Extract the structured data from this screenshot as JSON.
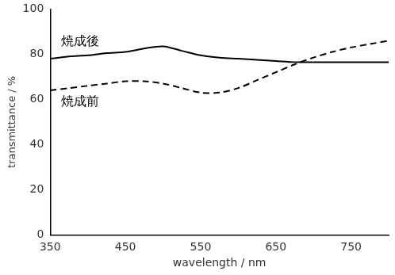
{
  "chart_data": {
    "type": "line",
    "x_label": "wavelength / nm",
    "y_label": "transmittance / %",
    "x": [
      350,
      375,
      400,
      425,
      450,
      475,
      500,
      525,
      550,
      575,
      600,
      625,
      650,
      675,
      700,
      725,
      750,
      775,
      800
    ],
    "series": [
      {
        "name": "焼成後",
        "color": "#000000",
        "line_style": "solid",
        "values": [
          78,
          79,
          79.5,
          80.5,
          81,
          82.5,
          83.5,
          81.5,
          79.5,
          78.5,
          78,
          77.5,
          77,
          76.5,
          76.5,
          76.5,
          76.5,
          76.5,
          76.5
        ]
      },
      {
        "name": "焼成前",
        "color": "#000000",
        "line_style": "dashed",
        "values": [
          64,
          65,
          66,
          67,
          68,
          68,
          67,
          65,
          63,
          63,
          65,
          68.5,
          72,
          75.5,
          78.5,
          81,
          83,
          84.5,
          86
        ]
      }
    ],
    "xlim": [
      350,
      800
    ],
    "xticks": [
      350,
      450,
      550,
      650,
      750
    ],
    "ylim": [
      0,
      100
    ],
    "yticks": [
      0,
      20,
      40,
      60,
      80,
      100
    ],
    "grid": false
  }
}
